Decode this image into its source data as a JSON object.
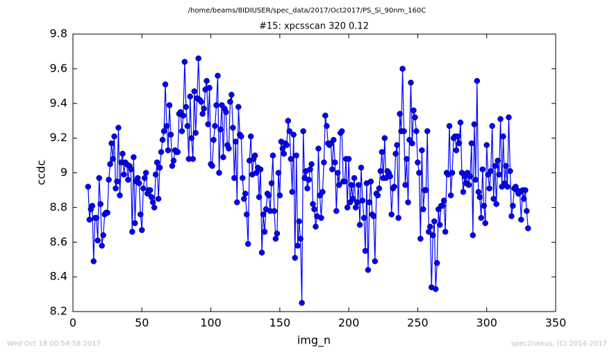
{
  "chart_data": {
    "type": "line",
    "suptitle": "/home/beams/8IDIUSER/spec_data/2017/Oct2017/PS_Si_90nm_160C",
    "title": "#15: xpcsscan 320 0.12",
    "xlabel": "img_n",
    "ylabel": "ccdc",
    "footer_left": "Wed Oct 18 00:54:58 2017",
    "footer_right": "spec2nexus, (C) 2014-2017",
    "color": "#0000ff",
    "marker": "circle",
    "xlim": [
      0,
      350
    ],
    "xticks": [
      0,
      50,
      100,
      150,
      200,
      250,
      300,
      350
    ],
    "ylim": [
      8.2,
      9.8
    ],
    "yticks": [
      8.2,
      8.4,
      8.6,
      8.8,
      9.0,
      9.2,
      9.4,
      9.6,
      9.8
    ],
    "x": [
      11,
      12,
      13,
      14,
      15,
      16,
      17,
      18,
      19,
      20,
      21,
      22,
      23,
      24,
      25,
      26,
      27,
      28,
      29,
      30,
      31,
      32,
      33,
      34,
      35,
      36,
      37,
      38,
      39,
      40,
      41,
      42,
      43,
      44,
      45,
      46,
      47,
      48,
      49,
      50,
      51,
      52,
      53,
      54,
      55,
      56,
      57,
      58,
      59,
      60,
      61,
      62,
      63,
      64,
      65,
      66,
      67,
      68,
      69,
      70,
      71,
      72,
      73,
      74,
      75,
      76,
      77,
      78,
      79,
      80,
      81,
      82,
      83,
      84,
      85,
      86,
      87,
      88,
      89,
      90,
      91,
      92,
      93,
      94,
      95,
      96,
      97,
      98,
      99,
      100,
      101,
      102,
      103,
      104,
      105,
      106,
      107,
      108,
      109,
      110,
      111,
      112,
      113,
      114,
      115,
      116,
      117,
      118,
      119,
      120,
      121,
      122,
      123,
      124,
      125,
      126,
      127,
      128,
      129,
      130,
      131,
      132,
      133,
      134,
      135,
      136,
      137,
      138,
      139,
      140,
      141,
      142,
      143,
      144,
      145,
      146,
      147,
      148,
      149,
      150,
      151,
      152,
      153,
      154,
      155,
      156,
      157,
      158,
      159,
      160,
      161,
      162,
      163,
      164,
      165,
      166,
      167,
      168,
      169,
      170,
      171,
      172,
      173,
      174,
      175,
      176,
      177,
      178,
      179,
      180,
      181,
      182,
      183,
      184,
      185,
      186,
      187,
      188,
      189,
      190,
      191,
      192,
      193,
      194,
      195,
      196,
      197,
      198,
      199,
      200,
      201,
      202,
      203,
      204,
      205,
      206,
      207,
      208,
      209,
      210,
      211,
      212,
      213,
      214,
      215,
      216,
      217,
      218,
      219,
      220,
      221,
      222,
      223,
      224,
      225,
      226,
      227,
      228,
      229,
      230,
      231,
      232,
      233,
      234,
      235,
      236,
      237,
      238,
      239,
      240,
      241,
      242,
      243,
      244,
      245,
      246,
      247,
      248,
      249,
      250,
      251,
      252,
      253,
      254,
      255,
      256,
      257,
      258,
      259,
      260,
      261,
      262,
      263,
      264,
      265,
      266,
      267,
      268,
      269,
      270,
      271,
      272,
      273,
      274,
      275,
      276,
      277,
      278,
      279,
      280,
      281,
      282,
      283,
      284,
      285,
      286,
      287,
      288,
      289,
      290,
      291,
      292,
      293,
      294,
      295,
      296,
      297,
      298,
      299,
      300,
      301,
      302,
      303,
      304,
      305,
      306,
      307,
      308,
      309,
      310,
      311,
      312,
      313,
      314,
      315,
      316,
      317,
      318,
      319,
      320,
      321,
      322,
      323,
      324,
      325,
      326,
      327,
      328,
      329,
      330
    ],
    "values": [
      8.92,
      8.73,
      8.79,
      8.81,
      8.49,
      8.74,
      8.74,
      8.61,
      8.97,
      8.82,
      8.58,
      8.64,
      8.76,
      8.77,
      8.77,
      8.96,
      9.05,
      9.17,
      9.08,
      9.21,
      8.91,
      8.95,
      9.26,
      8.87,
      9.06,
      9.11,
      8.99,
      9.06,
      9.05,
      8.96,
      9.04,
      9.02,
      8.66,
      9.09,
      8.71,
      8.95,
      8.97,
      8.94,
      8.76,
      8.67,
      8.91,
      8.97,
      9.0,
      8.88,
      8.9,
      8.9,
      8.86,
      8.83,
      8.8,
      8.99,
      9.06,
      8.85,
      9.03,
      9.12,
      9.19,
      9.24,
      9.51,
      9.27,
      9.13,
      9.39,
      9.22,
      9.04,
      9.07,
      9.13,
      9.12,
      9.12,
      9.34,
      9.35,
      9.24,
      9.33,
      9.64,
      9.38,
      9.27,
      9.08,
      9.44,
      9.2,
      9.08,
      9.47,
      9.23,
      9.43,
      9.66,
      9.42,
      9.41,
      9.34,
      9.37,
      9.48,
      9.53,
      9.28,
      9.49,
      9.05,
      9.04,
      9.19,
      9.27,
      9.39,
      9.56,
      9.0,
      9.25,
      9.39,
      9.09,
      9.37,
      9.35,
      9.16,
      9.14,
      9.41,
      9.45,
      9.26,
      8.97,
      9.18,
      8.83,
      9.38,
      9.22,
      9.21,
      8.97,
      8.85,
      8.88,
      8.76,
      8.59,
      9.07,
      9.21,
      8.99,
      9.08,
      9.1,
      9.0,
      9.03,
      8.86,
      9.02,
      8.54,
      8.76,
      8.66,
      8.79,
      8.88,
      8.87,
      8.78,
      8.94,
      9.1,
      8.78,
      8.62,
      8.65,
      9.0,
      8.87,
      9.18,
      9.14,
      9.11,
      9.17,
      9.16,
      9.3,
      9.24,
      9.08,
      8.89,
      9.22,
      8.51,
      9.1,
      8.58,
      8.72,
      8.62,
      8.25,
      9.24,
      8.97,
      9.01,
      8.91,
      8.96,
      9.02,
      9.05,
      8.82,
      8.79,
      8.69,
      8.75,
      9.14,
      8.87,
      8.74,
      8.89,
      9.06,
      9.33,
      9.27,
      9.17,
      9.16,
      9.17,
      9.02,
      9.19,
      9.06,
      8.78,
      9.0,
      8.93,
      9.23,
      9.24,
      8.95,
      8.95,
      9.08,
      8.8,
      9.08,
      8.83,
      8.93,
      8.85,
      8.97,
      8.8,
      8.83,
      8.93,
      8.7,
      9.03,
      8.84,
      8.74,
      8.55,
      8.94,
      8.44,
      8.83,
      8.95,
      8.76,
      8.75,
      8.49,
      8.88,
      8.87,
      8.91,
      9.01,
      9.12,
      8.97,
      9.2,
      8.97,
      9.01,
      9.0,
      8.98,
      8.76,
      8.91,
      8.92,
      9.11,
      9.16,
      8.74,
      9.34,
      9.24,
      9.6,
      9.24,
      8.93,
      9.08,
      8.83,
      9.19,
      9.52,
      9.17,
      9.36,
      9.32,
      9.24,
      9.06,
      9.0,
      8.62,
      9.13,
      8.79,
      8.9,
      8.9,
      9.24,
      8.66,
      8.69,
      8.34,
      8.64,
      8.72,
      8.33,
      8.48,
      8.79,
      8.7,
      8.81,
      8.81,
      8.84,
      8.66,
      9.0,
      8.99,
      9.27,
      8.87,
      9.0,
      9.2,
      9.21,
      9.13,
      9.21,
      9.17,
      9.29,
      9.0,
      8.89,
      8.98,
      8.94,
      9.0,
      8.93,
      8.98,
      9.17,
      8.64,
      9.28,
      8.96,
      9.53,
      8.89,
      8.86,
      8.74,
      9.02,
      8.81,
      8.71,
      9.16,
      8.99,
      8.91,
      9.01,
      9.27,
      8.85,
      9.04,
      8.82,
      9.07,
      8.99,
      9.31,
      8.92,
      9.21,
      8.94,
      9.04,
      8.92,
      9.32,
      9.01,
      8.75,
      8.81,
      8.91,
      8.92,
      8.9,
      8.88,
      8.89,
      8.73,
      8.9,
      8.85,
      8.9,
      8.78,
      8.68
    ]
  }
}
